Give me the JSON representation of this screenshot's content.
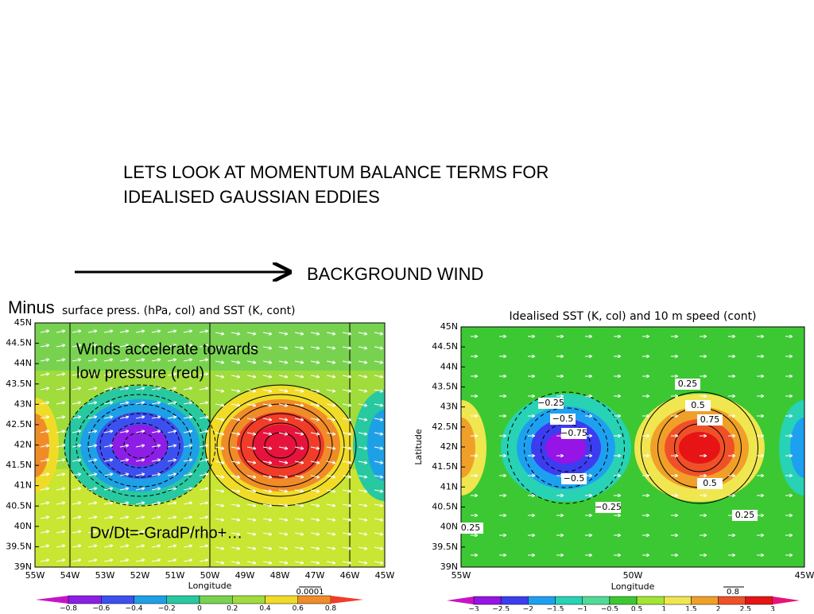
{
  "title_lines": [
    "LETS LOOK AT MOMENTUM BALANCE TERMS FOR",
    "IDEALISED GAUSSIAN EDDIES"
  ],
  "arrow_label": "BACKGROUND WIND",
  "left_panel": {
    "prefix": "Minus",
    "title": "surface press. (hPa, col) and SST (K, cont)",
    "x_label": "Longitude",
    "x_ticks": [
      "55W",
      "54W",
      "53W",
      "52W",
      "51W",
      "50W",
      "49W",
      "48W",
      "47W",
      "46W",
      "45W"
    ],
    "y_ticks": [
      "45N",
      "44.5N",
      "44N",
      "43.5N",
      "43N",
      "42.5N",
      "42N",
      "41.5N",
      "41N",
      "40.5N",
      "40N",
      "39.5N",
      "39N"
    ],
    "colorbar": [
      "−0.8",
      "−0.6",
      "−0.4",
      "−0.2",
      "0",
      "0.2",
      "0.4",
      "0.6",
      "0.8"
    ],
    "vector_ref": "0.0001",
    "notes": [
      "Winds accelerate towards",
      "low pressure (red)",
      "Dv/Dt=-GradP/rho+…"
    ]
  },
  "right_panel": {
    "title": "Idealised SST (K, col) and 10 m speed (cont)",
    "x_label": "Longitude",
    "y_label": "Latitude",
    "x_ticks": [
      "55W",
      "50W",
      "45W"
    ],
    "y_ticks": [
      "45N",
      "44.5N",
      "44N",
      "43.5N",
      "43N",
      "42.5N",
      "42N",
      "41.5N",
      "41N",
      "40.5N",
      "40N",
      "39.5N",
      "39N"
    ],
    "colorbar": [
      "−3",
      "−2.5",
      "−2",
      "−1.5",
      "−1",
      "−0.5",
      "0.5",
      "1",
      "1.5",
      "2",
      "2.5",
      "3"
    ],
    "vector_ref": "0.8",
    "contour_labels": [
      "−0.25",
      "−0.5",
      "−0.75",
      "−0.5",
      "−0.25",
      "0.25",
      "0.5",
      "0.75",
      "0.5",
      "0.25",
      "0.25"
    ]
  }
}
